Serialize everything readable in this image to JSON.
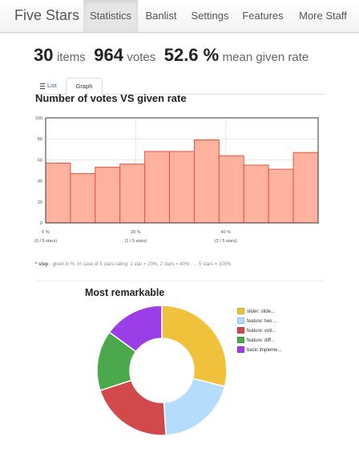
{
  "nav": {
    "brand": "Five Stars",
    "items": [
      {
        "label": "Statistics",
        "active": true
      },
      {
        "label": "Banlist"
      },
      {
        "label": "Settings"
      },
      {
        "label": "Features"
      },
      {
        "label": "More Staff"
      }
    ]
  },
  "stats": {
    "items_count": "30",
    "items_label": "items",
    "votes_count": "964",
    "votes_label": "votes",
    "rate_value": "52.6 %",
    "rate_label": "mean given rate"
  },
  "tabs": {
    "list": "List",
    "graph": "Graph"
  },
  "histogram": {
    "title": "Number of votes VS given rate",
    "note_bold": "* step",
    "note_rest": " - given in %. In case of 5 stars rating: 1 star = 20%, 2 stars = 40% . . . 5 stars = 100%"
  },
  "remarkable": {
    "title": "Most remarkable"
  },
  "colors": {
    "bar_fill": "#ffb2a0",
    "bar_stroke": "#e8533a"
  },
  "chart_data": [
    {
      "type": "bar",
      "title": "Number of votes VS given rate",
      "values": [
        57,
        47,
        53,
        56,
        68,
        68,
        79,
        64,
        55,
        51,
        67
      ],
      "ylim": [
        0,
        100
      ],
      "yticks": [
        "0",
        "20",
        "40",
        "60",
        "80",
        "100"
      ],
      "xticks": [
        {
          "value": 0,
          "label": "0 %",
          "sub": "(0 / 5 stars)"
        },
        {
          "value": 20,
          "label": "20 %",
          "sub": "(1 / 5 stars)"
        },
        {
          "value": 40,
          "label": "40 %",
          "sub": "(2 / 5 stars)"
        }
      ],
      "bin_width": 5.5,
      "grid": true
    },
    {
      "type": "pie",
      "title": "Most remarkable",
      "legend_position": "right",
      "series": [
        {
          "name": "slider: slide...",
          "value": 29,
          "color": "#f0c23c"
        },
        {
          "name": "feature: two ...",
          "value": 20,
          "color": "#b5dcfa"
        },
        {
          "name": "feature: voti...",
          "value": 21,
          "color": "#d1494a"
        },
        {
          "name": "feature: diff...",
          "value": 15,
          "color": "#4ca84c"
        },
        {
          "name": "basic impleme...",
          "value": 15,
          "color": "#9b3ee8"
        }
      ]
    }
  ]
}
